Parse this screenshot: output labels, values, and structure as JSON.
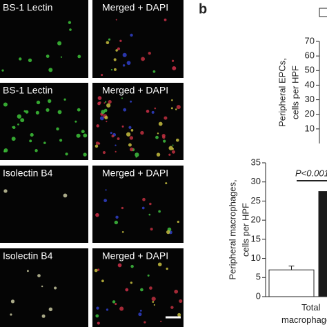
{
  "panels": [
    {
      "left": "BS-1 Lectin",
      "right": "Merged + DAPI"
    },
    {
      "left": "BS-1 Lectin",
      "right": "Merged + DAPI"
    },
    {
      "left": "Isolectin B4",
      "right": "Merged + DAPI"
    },
    {
      "left": "Isolectin B4",
      "right": "Merged + DAPI"
    }
  ],
  "panel_label": "b",
  "chart_data": [
    {
      "type": "bar",
      "ylabel": [
        "Peripheral EPCs,",
        "cells per HPF"
      ],
      "ylim": [
        0,
        70
      ],
      "yticks": [
        10,
        20,
        30,
        40,
        50,
        60,
        70
      ]
    },
    {
      "type": "bar",
      "ylabel": [
        "Peripheral macrophages,",
        "cells per HPF"
      ],
      "categories": [
        "Total macrophages"
      ],
      "series": [
        {
          "color": "#ffffff",
          "values": [
            7
          ],
          "errors": [
            1
          ]
        },
        {
          "color": "#1a1a1a",
          "values": [
            27.5
          ]
        }
      ],
      "annotation": "P<0.001",
      "ylim": [
        0,
        35
      ],
      "yticks": [
        0,
        5,
        10,
        15,
        20,
        25,
        30,
        35
      ]
    }
  ]
}
